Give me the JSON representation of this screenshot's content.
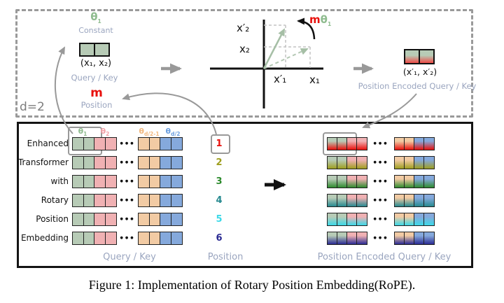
{
  "caption": "Figure 1: Implementation of Rotary Position Embedding(RoPE).",
  "colors": {
    "cell_green": "#b7cbb6",
    "cell_pink": "#f0b1b3",
    "cell_orange": "#f2cba4",
    "cell_blue": "#85a9dc",
    "accent_red": "#e8100c",
    "sage_text": "#8fbc8f",
    "muted_label": "#9aa5bf",
    "gray_arrow": "#999999",
    "encoded_red": "#ee4b47"
  },
  "top_panel": {
    "dimension_label": "d=2",
    "theta_constant": {
      "base": "θ",
      "sub": "1"
    },
    "constant_label": "Constant",
    "query_matrix_label": "(x₁, x₂)",
    "query_key_label": "Query / Key",
    "m_label": "m",
    "m_position_label": "Position",
    "plot": {
      "x2_rotated": "x′₂",
      "x2": "x₂",
      "x1_rotated": "x′₁",
      "x1": "x₁",
      "rotation_m": "m",
      "rotation_theta": {
        "base": "θ",
        "sub": "1"
      }
    },
    "encoded_matrix_label": "(x′₁, x′₂)",
    "encoded_label": "Position Encoded Query / Key"
  },
  "bottom_panel": {
    "tokens": [
      "Enhanced",
      "Transformer",
      "with",
      "Rotary",
      "Position",
      "Embedding"
    ],
    "positions": [
      "1",
      "2",
      "3",
      "4",
      "5",
      "6"
    ],
    "position_colors": [
      "#e8100c",
      "#9e9e1e",
      "#2e8b2e",
      "#26898f",
      "#3cd9e8",
      "#2a2a92"
    ],
    "theta_headers": [
      {
        "base": "θ",
        "sub": "1",
        "color": "#8fbc8f"
      },
      {
        "base": "θ",
        "sub": "2",
        "color": "#f2a0a6"
      },
      {
        "base": "θ",
        "sub": "d/2-1",
        "color": "#f2b87e"
      },
      {
        "base": "θ",
        "sub": "d/2",
        "color": "#6b9fe0"
      }
    ],
    "cell_base_colors": [
      "#b7cbb6",
      "#b7cbb6",
      "#f0b1b3",
      "#f0b1b3",
      "#f2cba4",
      "#f2cba4",
      "#85a9dc",
      "#85a9dc"
    ],
    "dots": "●●●",
    "query_key_label": "Query / Key",
    "position_label": "Position",
    "encoded_label": "Position Encoded Query / Key"
  }
}
